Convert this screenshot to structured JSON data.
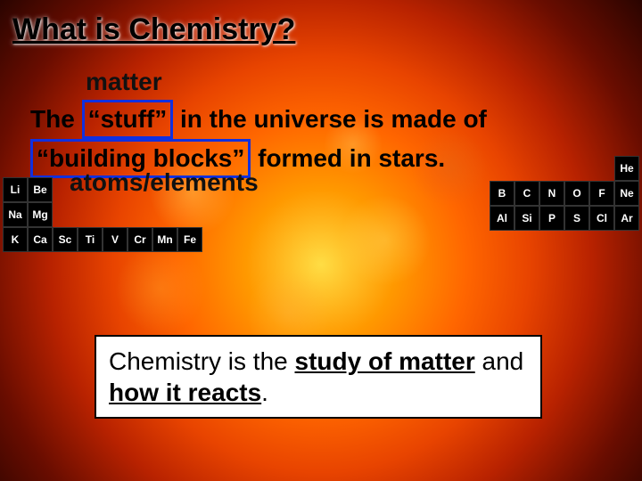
{
  "title": "What is Chemistry?",
  "matter_label": "matter",
  "sentence": {
    "part1": "The ",
    "boxed1": "“stuff”",
    "part2": " in the universe is made of ",
    "boxed2": "“building blocks”",
    "part3": " formed in stars."
  },
  "atoms_label": "atoms/elements",
  "elements_left": [
    [
      "Li",
      "Be"
    ],
    [
      "Na",
      "Mg"
    ],
    [
      "K",
      "Ca",
      "Sc",
      "Ti",
      "V",
      "Cr",
      "Mn",
      "Fe"
    ]
  ],
  "elements_right": [
    [
      "",
      "",
      "",
      "",
      "",
      "",
      "",
      "He"
    ],
    [
      "B",
      "C",
      "N",
      "O",
      "F",
      "Ne"
    ],
    [
      "Al",
      "Si",
      "P",
      "S",
      "Cl",
      "Ar"
    ]
  ],
  "definition": {
    "lead": "Chemistry is the ",
    "u1": "study of matter",
    "mid": " and ",
    "u2": "how it reacts",
    "tail": "."
  },
  "colors": {
    "box_border": "#1030e0",
    "element_bg": "#000000",
    "element_fg": "#ffffff"
  }
}
